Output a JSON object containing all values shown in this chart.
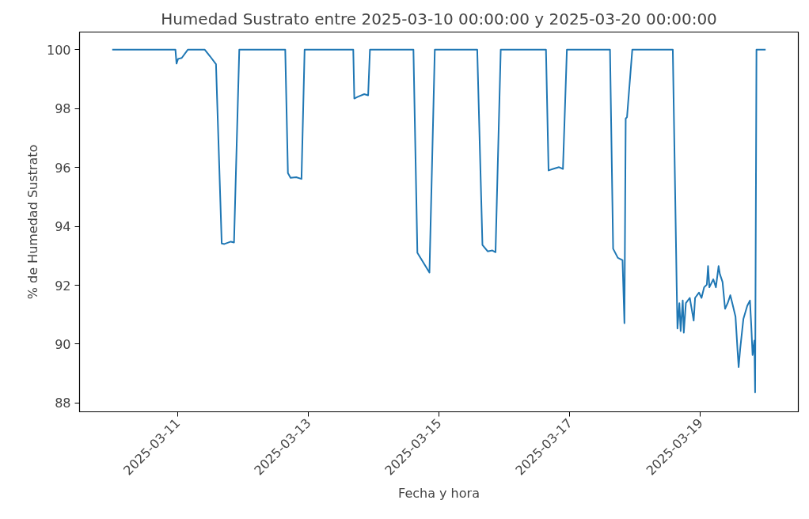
{
  "chart_data": {
    "type": "line",
    "title": "Humedad Sustrato entre 2025-03-10 00:00:00 y 2025-03-20 00:00:00",
    "xlabel": "Fecha y hora",
    "ylabel": "% de Humedad Sustrato",
    "xlim": [
      "2025-03-09T12:00",
      "2025-03-20T12:00"
    ],
    "xticks": [
      "2025-03-11",
      "2025-03-13",
      "2025-03-15",
      "2025-03-17",
      "2025-03-19"
    ],
    "ylim": [
      87.7,
      100.6
    ],
    "yticks": [
      88,
      90,
      92,
      94,
      96,
      98,
      100
    ],
    "grid": false,
    "marker": "none",
    "line_style": "solid",
    "series": [
      {
        "color": "#1f77b4",
        "x": [
          "2025-03-10T00:00",
          "2025-03-10T23:13",
          "2025-03-10T23:37",
          "2025-03-11T00:12",
          "2025-03-11T01:32",
          "2025-03-11T03:45",
          "2025-03-11T10:00",
          "2025-03-11T11:54",
          "2025-03-11T14:07",
          "2025-03-11T16:13",
          "2025-03-11T17:11",
          "2025-03-11T19:35",
          "2025-03-11T20:44",
          "2025-03-11T22:40",
          "2025-03-12T15:33",
          "2025-03-12T16:32",
          "2025-03-12T17:30",
          "2025-03-12T19:35",
          "2025-03-12T21:31",
          "2025-03-12T22:40",
          "2025-03-13T16:32",
          "2025-03-13T16:55",
          "2025-03-13T18:10",
          "2025-03-13T20:34",
          "2025-03-13T22:00",
          "2025-03-13T22:40",
          "2025-03-14T14:38",
          "2025-03-14T16:05",
          "2025-03-14T20:31",
          "2025-03-14T22:29",
          "2025-03-15T14:04",
          "2025-03-15T15:59",
          "2025-03-15T17:54",
          "2025-03-15T19:38",
          "2025-03-15T20:47",
          "2025-03-15T22:42",
          "2025-03-16T15:19",
          "2025-03-16T16:16",
          "2025-03-16T17:55",
          "2025-03-16T20:07",
          "2025-03-16T21:33",
          "2025-03-16T23:00",
          "2025-03-17T14:50",
          "2025-03-17T15:59",
          "2025-03-17T17:43",
          "2025-03-17T19:26",
          "2025-03-17T20:08",
          "2025-03-17T20:36",
          "2025-03-17T21:05",
          "2025-03-17T23:01",
          "2025-03-18T13:54",
          "2025-03-18T15:20",
          "2025-03-18T15:37",
          "2025-03-18T16:19",
          "2025-03-18T16:47",
          "2025-03-18T17:33",
          "2025-03-18T17:56",
          "2025-03-18T18:42",
          "2025-03-18T20:08",
          "2025-03-18T21:34",
          "2025-03-18T22:05",
          "2025-03-18T23:31",
          "2025-03-19T00:27",
          "2025-03-19T01:25",
          "2025-03-19T02:24",
          "2025-03-19T02:51",
          "2025-03-19T03:20",
          "2025-03-19T04:47",
          "2025-03-19T05:44",
          "2025-03-19T06:43",
          "2025-03-19T07:11",
          "2025-03-19T08:10",
          "2025-03-19T09:06",
          "2025-03-19T10:03",
          "2025-03-19T11:02",
          "2025-03-19T11:59",
          "2025-03-19T12:56",
          "2025-03-19T13:42",
          "2025-03-19T14:05",
          "2025-03-19T14:40",
          "2025-03-19T15:49",
          "2025-03-19T17:15",
          "2025-03-19T18:14",
          "2025-03-19T18:42",
          "2025-03-19T19:12",
          "2025-03-19T19:51",
          "2025-03-19T20:08",
          "2025-03-19T20:38",
          "2025-03-20T00:00"
        ],
        "values": [
          100,
          100,
          99.53,
          99.69,
          99.72,
          100,
          100,
          99.78,
          99.51,
          93.42,
          93.4,
          93.48,
          93.45,
          100,
          100,
          95.81,
          95.65,
          95.67,
          95.61,
          100,
          100,
          98.34,
          98.4,
          98.49,
          98.45,
          100,
          100,
          93.1,
          92.43,
          100,
          100,
          93.37,
          93.15,
          93.18,
          93.12,
          100,
          100,
          95.9,
          95.95,
          96.01,
          95.95,
          100,
          100,
          93.24,
          92.93,
          92.85,
          90.71,
          97.66,
          97.71,
          100,
          100,
          91.93,
          90.53,
          91.39,
          90.44,
          91.48,
          90.39,
          91.39,
          91.57,
          90.8,
          91.57,
          91.75,
          91.57,
          91.93,
          92.02,
          92.65,
          91.93,
          92.2,
          91.93,
          92.65,
          92.38,
          92.11,
          91.2,
          91.39,
          91.66,
          91.3,
          90.93,
          89.76,
          89.22,
          89.85,
          90.85,
          91.3,
          91.48,
          90.67,
          89.63,
          90.12,
          88.36,
          100,
          100
        ]
      }
    ]
  }
}
